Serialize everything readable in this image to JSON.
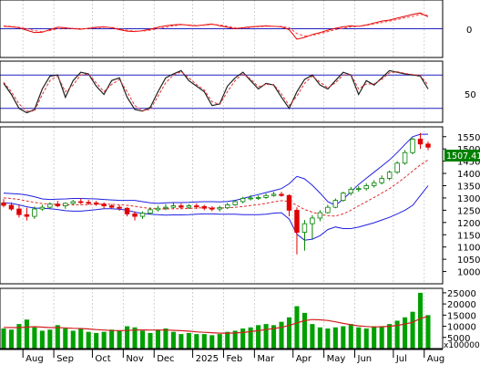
{
  "colors": {
    "background": "#ffffff",
    "grid": "#c8c8c8",
    "frame": "#000000",
    "macd": "#e00000",
    "signal": "#ff4040",
    "level_line": "#2020c0",
    "bollinger": "#2020e0",
    "ma": "#e03030",
    "candle_up": "#008000",
    "candle_down": "#e00000",
    "volume": "#00a000",
    "volume_ma": "#d02020",
    "price_tag_bg": "#008000",
    "price_tag_text": "#ffffff"
  },
  "chart_data": [
    {
      "type": "line",
      "panel": "oscillator-macd",
      "x": [
        "2024-07-15",
        "2024-07-22",
        "2024-07-29",
        "2024-08-05",
        "2024-08-12",
        "2024-08-19",
        "2024-08-26",
        "2024-09-02",
        "2024-09-09",
        "2024-09-16",
        "2024-09-23",
        "2024-09-30",
        "2024-10-07",
        "2024-10-14",
        "2024-10-21",
        "2024-10-28",
        "2024-11-04",
        "2024-11-11",
        "2024-11-18",
        "2024-11-25",
        "2024-12-02",
        "2024-12-09",
        "2024-12-16",
        "2024-12-23",
        "2024-12-30",
        "2025-01-06",
        "2025-01-13",
        "2025-01-20",
        "2025-01-27",
        "2025-02-03",
        "2025-02-10",
        "2025-02-17",
        "2025-02-24",
        "2025-03-03",
        "2025-03-10",
        "2025-03-17",
        "2025-03-24",
        "2025-03-31",
        "2025-04-07",
        "2025-04-14",
        "2025-04-21",
        "2025-04-28",
        "2025-05-05",
        "2025-05-12",
        "2025-05-19",
        "2025-05-26",
        "2025-06-02",
        "2025-06-09",
        "2025-06-16",
        "2025-06-23",
        "2025-06-30",
        "2025-07-07",
        "2025-07-14",
        "2025-07-21",
        "2025-07-28",
        "2025-08-04"
      ],
      "ylim": [
        -60,
        60
      ],
      "tick_labels": [
        "0"
      ],
      "reference_levels": [
        0
      ],
      "series": [
        {
          "values": [
            5,
            4,
            2,
            -3,
            -8,
            -7,
            -2,
            3,
            2,
            0,
            -1,
            1,
            3,
            4,
            2,
            -2,
            -5,
            -6,
            -4,
            -1,
            3,
            6,
            8,
            9,
            7,
            6,
            8,
            10,
            6,
            3,
            0,
            2,
            4,
            5,
            6,
            5,
            4,
            -2,
            -22,
            -18,
            -12,
            -8,
            -3,
            1,
            4,
            6,
            5,
            8,
            12,
            16,
            18,
            22,
            26,
            30,
            33,
            25
          ]
        },
        {
          "values": [
            6,
            5,
            3,
            0,
            -4,
            -6,
            -4,
            0,
            1,
            1,
            0,
            0,
            2,
            3,
            3,
            0,
            -3,
            -5,
            -5,
            -3,
            0,
            3,
            6,
            8,
            8,
            7,
            7,
            9,
            8,
            5,
            2,
            1,
            3,
            4,
            5,
            5,
            5,
            2,
            -10,
            -15,
            -14,
            -10,
            -6,
            -2,
            1,
            4,
            5,
            7,
            10,
            13,
            16,
            19,
            23,
            26,
            30,
            28
          ]
        }
      ]
    },
    {
      "type": "line",
      "panel": "oscillator-stochastic",
      "x": [
        "2024-07-15",
        "2024-07-22",
        "2024-07-29",
        "2024-08-05",
        "2024-08-12",
        "2024-08-19",
        "2024-08-26",
        "2024-09-02",
        "2024-09-09",
        "2024-09-16",
        "2024-09-23",
        "2024-09-30",
        "2024-10-07",
        "2024-10-14",
        "2024-10-21",
        "2024-10-28",
        "2024-11-04",
        "2024-11-11",
        "2024-11-18",
        "2024-11-25",
        "2024-12-02",
        "2024-12-09",
        "2024-12-16",
        "2024-12-23",
        "2024-12-30",
        "2025-01-06",
        "2025-01-13",
        "2025-01-20",
        "2025-01-27",
        "2025-02-03",
        "2025-02-10",
        "2025-02-17",
        "2025-02-24",
        "2025-03-03",
        "2025-03-10",
        "2025-03-17",
        "2025-03-24",
        "2025-03-31",
        "2025-04-07",
        "2025-04-14",
        "2025-04-21",
        "2025-04-28",
        "2025-05-05",
        "2025-05-12",
        "2025-05-19",
        "2025-05-26",
        "2025-06-02",
        "2025-06-09",
        "2025-06-16",
        "2025-06-23",
        "2025-06-30",
        "2025-07-07",
        "2025-07-14",
        "2025-07-21",
        "2025-07-28",
        "2025-08-04"
      ],
      "ylim": [
        -5,
        105
      ],
      "tick_labels": [
        "50"
      ],
      "reference_levels": [
        80,
        20
      ],
      "series": [
        {
          "values": [
            65,
            45,
            20,
            12,
            18,
            55,
            78,
            80,
            40,
            70,
            85,
            82,
            60,
            45,
            70,
            75,
            40,
            18,
            15,
            22,
            50,
            75,
            82,
            88,
            70,
            60,
            50,
            25,
            28,
            60,
            75,
            85,
            70,
            55,
            65,
            62,
            40,
            20,
            50,
            72,
            80,
            62,
            55,
            70,
            85,
            80,
            45,
            70,
            62,
            75,
            88,
            85,
            82,
            80,
            78,
            55
          ]
        },
        {
          "values": [
            67,
            50,
            28,
            15,
            15,
            45,
            70,
            78,
            50,
            62,
            80,
            82,
            66,
            50,
            63,
            72,
            50,
            25,
            16,
            18,
            42,
            66,
            80,
            86,
            75,
            63,
            53,
            32,
            27,
            50,
            70,
            82,
            73,
            59,
            63,
            63,
            46,
            25,
            42,
            65,
            78,
            67,
            57,
            66,
            80,
            81,
            55,
            64,
            64,
            72,
            84,
            86,
            83,
            81,
            79,
            62
          ]
        }
      ]
    },
    {
      "type": "line",
      "panel": "price",
      "x": [
        "2024-07-15",
        "2024-07-22",
        "2024-07-29",
        "2024-08-05",
        "2024-08-12",
        "2024-08-19",
        "2024-08-26",
        "2024-09-02",
        "2024-09-09",
        "2024-09-16",
        "2024-09-23",
        "2024-09-30",
        "2024-10-07",
        "2024-10-14",
        "2024-10-21",
        "2024-10-28",
        "2024-11-04",
        "2024-11-11",
        "2024-11-18",
        "2024-11-25",
        "2024-12-02",
        "2024-12-09",
        "2024-12-16",
        "2024-12-23",
        "2024-12-30",
        "2025-01-06",
        "2025-01-13",
        "2025-01-20",
        "2025-01-27",
        "2025-02-03",
        "2025-02-10",
        "2025-02-17",
        "2025-02-24",
        "2025-03-03",
        "2025-03-10",
        "2025-03-17",
        "2025-03-24",
        "2025-03-31",
        "2025-04-07",
        "2025-04-14",
        "2025-04-21",
        "2025-04-28",
        "2025-05-05",
        "2025-05-12",
        "2025-05-19",
        "2025-05-26",
        "2025-06-02",
        "2025-06-09",
        "2025-06-16",
        "2025-06-23",
        "2025-06-30",
        "2025-07-07",
        "2025-07-14",
        "2025-07-21",
        "2025-07-28",
        "2025-08-04"
      ],
      "ylim": [
        950,
        1590
      ],
      "tick_labels": [
        "1550",
        "1500",
        "1450",
        "1400",
        "1350",
        "1300",
        "1250",
        "1200",
        "1150",
        "1100",
        "1050",
        "1000"
      ],
      "last_price_label": "1507.410",
      "candles": {
        "open": [
          1280,
          1270,
          1255,
          1232,
          1225,
          1255,
          1262,
          1275,
          1268,
          1278,
          1285,
          1282,
          1280,
          1275,
          1268,
          1262,
          1258,
          1235,
          1225,
          1238,
          1252,
          1258,
          1262,
          1268,
          1262,
          1268,
          1265,
          1258,
          1255,
          1260,
          1272,
          1285,
          1298,
          1300,
          1302,
          1310,
          1315,
          1310,
          1250,
          1160,
          1195,
          1218,
          1240,
          1262,
          1290,
          1320,
          1335,
          1338,
          1350,
          1362,
          1380,
          1405,
          1442,
          1485,
          1540,
          1520
        ],
        "high": [
          1295,
          1282,
          1272,
          1260,
          1265,
          1272,
          1282,
          1288,
          1282,
          1292,
          1298,
          1292,
          1288,
          1282,
          1275,
          1270,
          1262,
          1245,
          1245,
          1262,
          1268,
          1275,
          1280,
          1278,
          1275,
          1278,
          1272,
          1266,
          1268,
          1280,
          1292,
          1305,
          1312,
          1310,
          1318,
          1325,
          1325,
          1315,
          1262,
          1210,
          1230,
          1250,
          1272,
          1298,
          1325,
          1345,
          1348,
          1360,
          1372,
          1392,
          1412,
          1450,
          1495,
          1545,
          1565,
          1530
        ],
        "low": [
          1262,
          1248,
          1220,
          1208,
          1215,
          1248,
          1256,
          1262,
          1256,
          1270,
          1275,
          1272,
          1268,
          1258,
          1255,
          1248,
          1225,
          1208,
          1215,
          1232,
          1245,
          1250,
          1256,
          1255,
          1255,
          1255,
          1250,
          1246,
          1245,
          1255,
          1268,
          1278,
          1290,
          1292,
          1296,
          1305,
          1305,
          1225,
          1070,
          1085,
          1130,
          1205,
          1236,
          1258,
          1285,
          1310,
          1325,
          1330,
          1342,
          1355,
          1372,
          1398,
          1435,
          1478,
          1500,
          1495
        ],
        "close": [
          1270,
          1255,
          1232,
          1225,
          1255,
          1262,
          1275,
          1268,
          1278,
          1285,
          1282,
          1280,
          1275,
          1268,
          1262,
          1258,
          1235,
          1225,
          1238,
          1252,
          1258,
          1262,
          1268,
          1262,
          1268,
          1265,
          1258,
          1255,
          1260,
          1272,
          1285,
          1298,
          1300,
          1302,
          1310,
          1315,
          1310,
          1250,
          1160,
          1195,
          1218,
          1240,
          1262,
          1290,
          1320,
          1335,
          1338,
          1350,
          1362,
          1380,
          1405,
          1442,
          1485,
          1540,
          1520,
          1507
        ]
      },
      "series": [
        {
          "values": [
            1300,
            1298,
            1294,
            1288,
            1282,
            1277,
            1275,
            1274,
            1272,
            1272,
            1272,
            1273,
            1274,
            1275,
            1274,
            1272,
            1270,
            1266,
            1261,
            1257,
            1255,
            1255,
            1256,
            1256,
            1257,
            1259,
            1260,
            1260,
            1259,
            1260,
            1262,
            1265,
            1269,
            1273,
            1278,
            1284,
            1289,
            1286,
            1270,
            1253,
            1242,
            1233,
            1228,
            1226,
            1235,
            1250,
            1268,
            1285,
            1302,
            1320,
            1338,
            1360,
            1384,
            1410,
            1435,
            1455
          ]
        },
        {
          "values": [
            1320,
            1318,
            1316,
            1312,
            1305,
            1296,
            1294,
            1295,
            1296,
            1298,
            1298,
            1297,
            1296,
            1294,
            1292,
            1290,
            1290,
            1290,
            1285,
            1280,
            1278,
            1280,
            1281,
            1281,
            1282,
            1284,
            1285,
            1285,
            1284,
            1286,
            1290,
            1298,
            1306,
            1314,
            1322,
            1330,
            1338,
            1358,
            1388,
            1378,
            1352,
            1320,
            1285,
            1270,
            1295,
            1325,
            1355,
            1380,
            1405,
            1430,
            1455,
            1485,
            1518,
            1550,
            1560,
            1560
          ]
        },
        {
          "values": [
            1280,
            1278,
            1272,
            1264,
            1259,
            1258,
            1256,
            1253,
            1248,
            1246,
            1246,
            1249,
            1252,
            1256,
            1256,
            1254,
            1250,
            1242,
            1237,
            1234,
            1232,
            1230,
            1231,
            1231,
            1232,
            1234,
            1235,
            1235,
            1234,
            1234,
            1234,
            1232,
            1232,
            1232,
            1234,
            1238,
            1240,
            1214,
            1152,
            1128,
            1132,
            1146,
            1171,
            1182,
            1175,
            1175,
            1181,
            1190,
            1199,
            1210,
            1221,
            1235,
            1250,
            1270,
            1310,
            1350
          ]
        }
      ]
    },
    {
      "type": "bar",
      "panel": "volume",
      "x": [
        "2024-07-15",
        "2024-07-22",
        "2024-07-29",
        "2024-08-05",
        "2024-08-12",
        "2024-08-19",
        "2024-08-26",
        "2024-09-02",
        "2024-09-09",
        "2024-09-16",
        "2024-09-23",
        "2024-09-30",
        "2024-10-07",
        "2024-10-14",
        "2024-10-21",
        "2024-10-28",
        "2024-11-04",
        "2024-11-11",
        "2024-11-18",
        "2024-11-25",
        "2024-12-02",
        "2024-12-09",
        "2024-12-16",
        "2024-12-23",
        "2024-12-30",
        "2025-01-06",
        "2025-01-13",
        "2025-01-20",
        "2025-01-27",
        "2025-02-03",
        "2025-02-10",
        "2025-02-17",
        "2025-02-24",
        "2025-03-03",
        "2025-03-10",
        "2025-03-17",
        "2025-03-24",
        "2025-03-31",
        "2025-04-07",
        "2025-04-14",
        "2025-04-21",
        "2025-04-28",
        "2025-05-05",
        "2025-05-12",
        "2025-05-19",
        "2025-05-26",
        "2025-06-02",
        "2025-06-09",
        "2025-06-16",
        "2025-06-23",
        "2025-06-30",
        "2025-07-07",
        "2025-07-14",
        "2025-07-21",
        "2025-07-28",
        "2025-08-04"
      ],
      "ylim": [
        0,
        27000
      ],
      "tick_labels": [
        "25000",
        "20000",
        "15000",
        "10000",
        "5000"
      ],
      "unit_label": "x100000",
      "values": [
        9000,
        8500,
        11000,
        13000,
        9500,
        8000,
        8500,
        10500,
        9000,
        8000,
        9000,
        7500,
        7000,
        7500,
        8500,
        8000,
        10000,
        9500,
        8000,
        7000,
        8500,
        9000,
        7500,
        6500,
        7000,
        6500,
        6500,
        6000,
        6500,
        7500,
        8000,
        9000,
        9500,
        10500,
        11000,
        10500,
        12000,
        14000,
        19000,
        16000,
        11000,
        9500,
        9000,
        9500,
        10000,
        11000,
        9500,
        9000,
        10000,
        10000,
        11000,
        12500,
        14000,
        16500,
        25000,
        15000
      ],
      "series": [
        {
          "values": [
            9500,
            9400,
            9400,
            9600,
            9800,
            9600,
            9400,
            9400,
            9300,
            9100,
            9000,
            8800,
            8500,
            8300,
            8100,
            8000,
            8100,
            8300,
            8400,
            8300,
            8300,
            8300,
            8200,
            8000,
            7800,
            7500,
            7300,
            7100,
            6900,
            6900,
            7000,
            7200,
            7600,
            8000,
            8500,
            9000,
            9500,
            10400,
            11500,
            12500,
            13000,
            12900,
            12600,
            12000,
            11300,
            10700,
            10200,
            9900,
            9700,
            9800,
            10000,
            10400,
            11000,
            11800,
            13500,
            14500
          ]
        }
      ]
    }
  ],
  "time_axis": {
    "labels": [
      "Aug",
      "Sep",
      "Oct",
      "Nov",
      "Dec",
      "2025",
      "Feb",
      "Mar",
      "Apr",
      "May",
      "Jun",
      "Jul",
      "Aug"
    ]
  }
}
